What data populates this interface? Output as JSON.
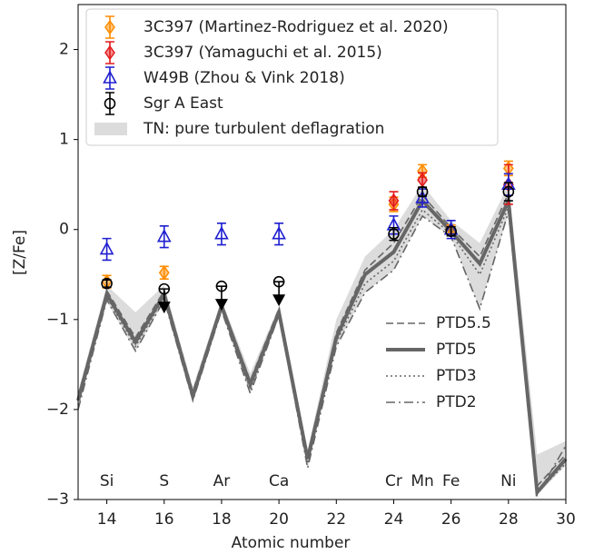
{
  "chart_data": {
    "type": "errorbar",
    "x_label": "Atomic number",
    "y_label": "[Z/Fe]",
    "xlim": [
      13,
      30
    ],
    "ylim": [
      -3,
      2.5
    ],
    "xticks": [
      14,
      16,
      18,
      20,
      22,
      24,
      26,
      28,
      30
    ],
    "yticks": [
      {
        "value": -3,
        "label": "−3"
      },
      {
        "value": -2,
        "label": "−2"
      },
      {
        "value": -1,
        "label": "−1"
      },
      0,
      1,
      2
    ],
    "element_labels": {
      "x": [
        14,
        16,
        18,
        20,
        24,
        25,
        26,
        28
      ],
      "labels": [
        "Si",
        "S",
        "Ar",
        "Ca",
        "Cr",
        "Mn",
        "Fe",
        "Ni"
      ],
      "y": -2.8
    },
    "band": {
      "name": "TN: pure turbulent deflagration",
      "color": "#dcdcdc",
      "x": [
        13,
        14,
        15,
        16,
        17,
        18,
        19,
        20,
        21,
        22,
        23,
        24,
        25,
        26,
        27,
        28,
        29,
        30
      ],
      "lower": [
        -2.0,
        -0.8,
        -1.35,
        -0.8,
        -1.9,
        -0.92,
        -1.82,
        -0.97,
        -2.65,
        -1.3,
        -0.7,
        -0.45,
        0.15,
        -0.08,
        -0.88,
        0.18,
        -2.95,
        -2.62
      ],
      "upper": [
        -1.8,
        -0.62,
        -0.92,
        -0.62,
        -1.75,
        -0.78,
        -1.6,
        -0.85,
        -2.45,
        -1.0,
        -0.3,
        0.0,
        0.5,
        0.1,
        -0.15,
        0.5,
        -2.5,
        -2.35
      ]
    },
    "models": [
      {
        "name": "PTD5.5",
        "style": "dashed",
        "color": "#666666",
        "x": [
          13,
          14,
          15,
          16,
          17,
          18,
          19,
          20,
          21,
          22,
          23,
          24,
          25,
          26,
          27,
          28,
          29,
          30
        ],
        "values": [
          -1.85,
          -0.68,
          -1.2,
          -0.68,
          -1.8,
          -0.82,
          -1.68,
          -0.88,
          -2.5,
          -1.15,
          -0.45,
          -0.15,
          0.38,
          0.02,
          -0.3,
          0.4,
          -2.85,
          -2.5
        ]
      },
      {
        "name": "PTD5",
        "style": "solid",
        "color": "#666666",
        "x": [
          13,
          14,
          15,
          16,
          17,
          18,
          19,
          20,
          21,
          22,
          23,
          24,
          25,
          26,
          27,
          28,
          29,
          30
        ],
        "values": [
          -1.9,
          -0.72,
          -1.25,
          -0.72,
          -1.85,
          -0.85,
          -1.72,
          -0.92,
          -2.55,
          -1.2,
          -0.5,
          -0.25,
          0.32,
          -0.02,
          -0.38,
          0.32,
          -2.92,
          -2.55
        ]
      },
      {
        "name": "PTD3",
        "style": "dotted",
        "color": "#666666",
        "x": [
          13,
          14,
          15,
          16,
          17,
          18,
          19,
          20,
          21,
          22,
          23,
          24,
          25,
          26,
          27,
          28,
          29,
          30
        ],
        "values": [
          -1.95,
          -0.75,
          -1.3,
          -0.75,
          -1.88,
          -0.88,
          -1.78,
          -0.95,
          -2.6,
          -1.25,
          -0.6,
          -0.35,
          0.22,
          -0.05,
          -0.5,
          0.25,
          -2.92,
          -2.6
        ]
      },
      {
        "name": "PTD2",
        "style": "dashdot",
        "color": "#666666",
        "x": [
          13,
          14,
          15,
          16,
          17,
          18,
          19,
          20,
          21,
          22,
          23,
          24,
          25,
          26,
          27,
          28,
          29,
          30
        ],
        "values": [
          -2.0,
          -0.78,
          -1.35,
          -0.78,
          -1.9,
          -0.9,
          -1.82,
          -0.95,
          -2.65,
          -1.3,
          -0.7,
          -0.45,
          0.15,
          -0.08,
          -0.88,
          0.2,
          -2.95,
          -2.4
        ]
      }
    ],
    "series": [
      {
        "name": "3C397 (Martinez-Rodriguez et al. 2020)",
        "color": "#ff8c00",
        "marker": "diamond",
        "x": [
          14,
          16,
          24,
          25,
          26,
          28
        ],
        "values": [
          -0.58,
          -0.48,
          0.28,
          0.65,
          0.0,
          0.68
        ],
        "errors": [
          0.07,
          0.07,
          0.08,
          0.07,
          0.05,
          0.08
        ]
      },
      {
        "name": "3C397 (Yamaguchi et al. 2015)",
        "color": "#e31a1c",
        "marker": "diamond",
        "x": [
          24,
          25,
          28
        ],
        "values": [
          0.32,
          0.55,
          0.5
        ],
        "errors": [
          0.1,
          0.08,
          0.22
        ]
      },
      {
        "name": "W49B (Zhou & Vink 2018)",
        "color": "#1f1fd0",
        "marker": "triangle",
        "x": [
          14,
          16,
          18,
          20,
          24,
          25,
          26,
          28
        ],
        "values": [
          -0.22,
          -0.08,
          -0.05,
          -0.05,
          0.05,
          0.35,
          0.0,
          0.5
        ],
        "errors": [
          0.12,
          0.12,
          0.12,
          0.12,
          0.1,
          0.1,
          0.1,
          0.12
        ]
      },
      {
        "name": "Sgr A East",
        "color": "#000000",
        "marker": "circle",
        "x": [
          14,
          16,
          18,
          20,
          24,
          25,
          26,
          28
        ],
        "values": [
          -0.6,
          -0.66,
          -0.63,
          -0.58,
          -0.05,
          0.42,
          -0.02,
          0.42
        ],
        "errors": [
          0.04,
          null,
          null,
          null,
          0.07,
          0.05,
          0.05,
          0.1
        ],
        "upper_limits": [
          false,
          true,
          true,
          true,
          false,
          false,
          false,
          false
        ]
      }
    ]
  }
}
